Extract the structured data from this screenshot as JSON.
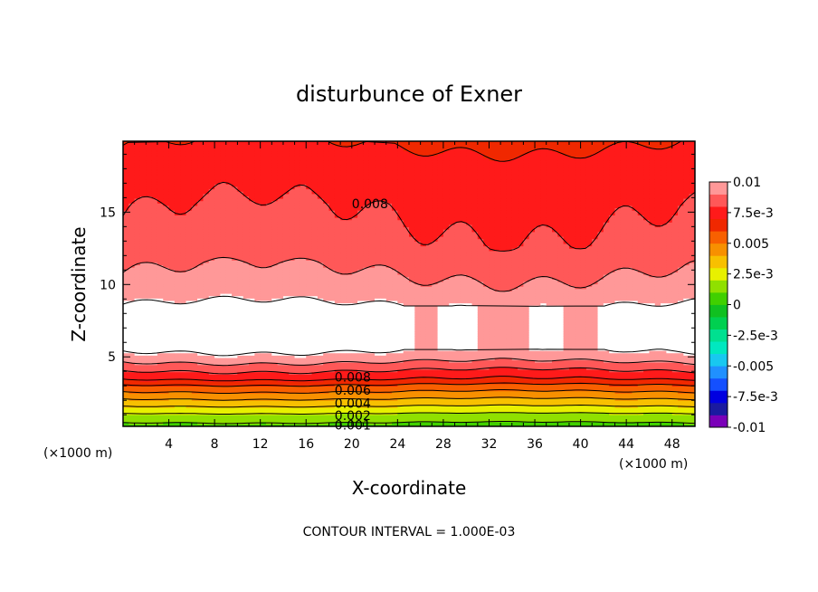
{
  "chart_data": {
    "type": "heatmap",
    "title": "disturbunce of Exner",
    "xlabel": "X-coordinate",
    "ylabel": "Z-coordinate",
    "x_unit": "(×1000 m)",
    "y_unit": "(×1000 m)",
    "xlim": [
      0,
      50
    ],
    "ylim": [
      0.2,
      19.9
    ],
    "x_ticks": [
      4,
      8,
      12,
      16,
      20,
      24,
      28,
      32,
      36,
      40,
      44,
      48
    ],
    "y_ticks": [
      5,
      10,
      15
    ],
    "footnote": "CONTOUR INTERVAL = 1.000E-03",
    "colorbar": {
      "labels": [
        "0.01",
        "7.5e-3",
        "0.005",
        "2.5e-3",
        "0",
        "-2.5e-3",
        "-0.005",
        "-7.5e-3",
        "-0.01"
      ],
      "label_values": [
        0.01,
        0.0075,
        0.005,
        0.0025,
        0,
        -0.0025,
        -0.005,
        -0.0075,
        -0.01
      ],
      "min": -0.01,
      "max": 0.01,
      "levels": 20,
      "colors": [
        "#7a00b8",
        "#1a1aa0",
        "#0000e0",
        "#1450ff",
        "#2090ff",
        "#18c8f0",
        "#00e8c0",
        "#00e090",
        "#00d050",
        "#10c020",
        "#40d000",
        "#90e000",
        "#e8f000",
        "#f8c000",
        "#f89000",
        "#f86000",
        "#f02800",
        "#ff1a1a",
        "#ff5858",
        "#ff9898"
      ]
    },
    "field_profile": {
      "z": [
        0.2,
        1.0,
        2.0,
        3.0,
        3.5,
        4.0,
        4.4,
        4.9,
        5.5,
        8.5,
        9.5,
        11.5,
        12.5,
        15.5,
        16.5,
        18.5,
        19.9
      ],
      "value": [
        0.0006,
        0.0018,
        0.0038,
        0.0058,
        0.0071,
        0.0079,
        0.0086,
        0.0094,
        0.0101,
        0.0101,
        0.0094,
        0.0088,
        0.0083,
        0.0079,
        0.0077,
        0.0074,
        0.0069
      ]
    },
    "contour_labels": [
      {
        "text": "0.008",
        "x": 20,
        "z": 15.6
      },
      {
        "text": "0.008",
        "x": 18.5,
        "z": 3.6
      },
      {
        "text": "0.006",
        "x": 18.5,
        "z": 2.7
      },
      {
        "text": "0.004",
        "x": 18.5,
        "z": 1.8
      },
      {
        "text": "0.002",
        "x": 18.5,
        "z": 0.95
      },
      {
        "text": "0.001",
        "x": 18.5,
        "z": 0.3
      }
    ]
  }
}
